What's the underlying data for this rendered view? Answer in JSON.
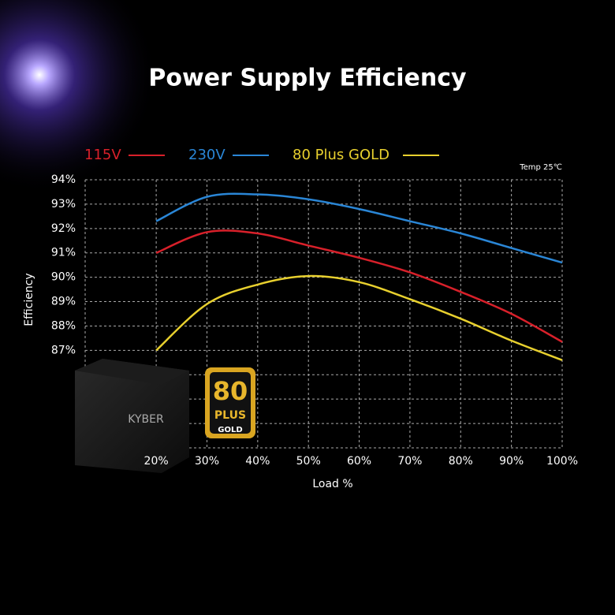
{
  "chart_data": {
    "type": "line",
    "title": "Power Supply Efficiency",
    "x_label": "Load %",
    "y_label": "Efficiency",
    "annotation": "Temp 25℃",
    "x": [
      20,
      30,
      40,
      50,
      60,
      70,
      80,
      90,
      100
    ],
    "series": [
      {
        "name": "115V",
        "color": "#d8202a",
        "values": [
          91.0,
          91.85,
          91.8,
          91.3,
          90.8,
          90.2,
          89.4,
          88.5,
          87.35
        ]
      },
      {
        "name": "230V",
        "color": "#2a86d6",
        "values": [
          92.3,
          93.3,
          93.4,
          93.2,
          92.8,
          92.3,
          91.8,
          91.2,
          90.6
        ]
      },
      {
        "name": "80 Plus GOLD",
        "color": "#e8d02e",
        "values": [
          87.0,
          88.9,
          89.7,
          90.05,
          89.8,
          89.1,
          88.3,
          87.4,
          86.6
        ]
      }
    ],
    "xlim": [
      6,
      100
    ],
    "xticks": [
      {
        "value": 20,
        "label": "20%"
      },
      {
        "value": 30,
        "label": "30%"
      },
      {
        "value": 40,
        "label": "40%"
      },
      {
        "value": 50,
        "label": "50%"
      },
      {
        "value": 60,
        "label": "60%"
      },
      {
        "value": 70,
        "label": "70%"
      },
      {
        "value": 80,
        "label": "80%"
      },
      {
        "value": 90,
        "label": "90%"
      },
      {
        "value": 100,
        "label": "100%"
      }
    ],
    "ylim": [
      83,
      94
    ],
    "yticks": [
      {
        "value": 94,
        "label": "94%"
      },
      {
        "value": 93,
        "label": "93%"
      },
      {
        "value": 92,
        "label": "92%"
      },
      {
        "value": 91,
        "label": "91%"
      },
      {
        "value": 90,
        "label": "90%"
      },
      {
        "value": 89,
        "label": "89%"
      },
      {
        "value": 88,
        "label": "88%"
      },
      {
        "value": 87,
        "label": "87%"
      },
      {
        "value": 86,
        "label": null
      },
      {
        "value": 85,
        "label": null
      },
      {
        "value": 84,
        "label": null
      },
      {
        "value": 83,
        "label": null
      }
    ],
    "grid": true
  },
  "product": {
    "label": "KYBER"
  },
  "badge": {
    "number": "80",
    "text": "PLUS",
    "tier": "GOLD"
  }
}
